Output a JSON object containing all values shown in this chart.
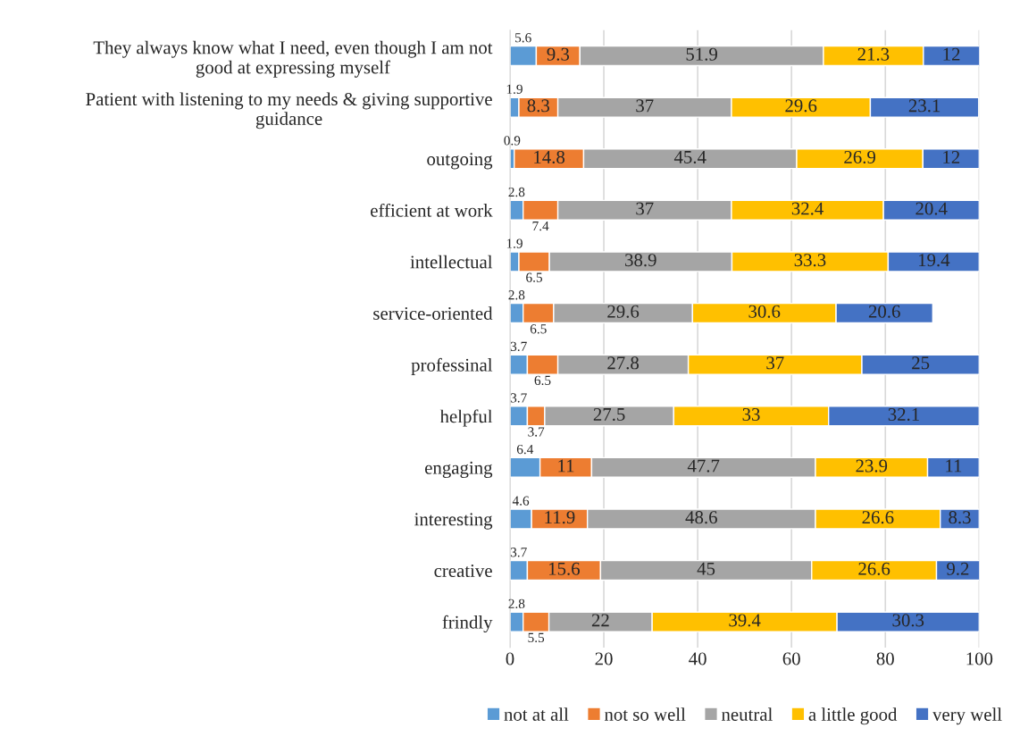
{
  "chart_data": {
    "type": "bar",
    "orientation": "horizontal",
    "stacked": true,
    "categories": [
      "They always know what I need, even though I am not\ngood at expressing myself",
      "Patient with listening to my needs & giving supportive\nguidance",
      "outgoing",
      "efficient at work",
      "intellectual",
      "service-oriented",
      "professinal",
      "helpful",
      "engaging",
      "interesting",
      "creative",
      "frindly"
    ],
    "series": [
      {
        "name": "not at all",
        "color": "#5b9bd5",
        "values": [
          5.6,
          1.9,
          0.9,
          2.8,
          1.9,
          2.8,
          3.7,
          3.7,
          6.4,
          4.6,
          3.7,
          2.8
        ]
      },
      {
        "name": "not so well",
        "color": "#ed7d31",
        "values": [
          9.3,
          8.3,
          14.8,
          7.4,
          6.5,
          6.5,
          6.5,
          3.7,
          11,
          11.9,
          15.6,
          5.5
        ]
      },
      {
        "name": "neutral",
        "color": "#a5a5a5",
        "values": [
          51.9,
          37,
          45.4,
          37,
          38.9,
          29.6,
          27.8,
          27.5,
          47.7,
          48.6,
          45,
          22
        ]
      },
      {
        "name": "a little good",
        "color": "#ffc000",
        "values": [
          21.3,
          29.6,
          26.9,
          32.4,
          33.3,
          30.6,
          37,
          33,
          23.9,
          26.6,
          26.6,
          39.4
        ]
      },
      {
        "name": "very well",
        "color": "#4472c4",
        "values": [
          12,
          23.1,
          12,
          20.4,
          19.4,
          20.6,
          25,
          32.1,
          11,
          8.3,
          9.2,
          30.3
        ]
      }
    ],
    "xlim": [
      0,
      100
    ],
    "xticks": [
      0,
      20,
      40,
      60,
      80,
      100
    ],
    "grid": "x",
    "legend": "bottom",
    "data_labels": true
  }
}
